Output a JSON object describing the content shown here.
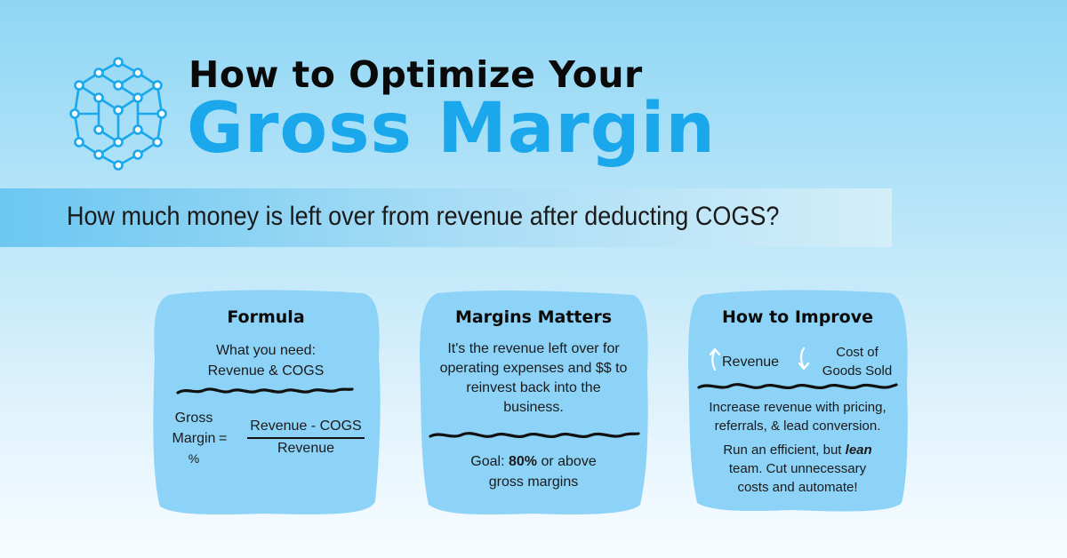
{
  "header": {
    "title_line1": "How to Optimize Your",
    "title_line2": "Gross Margin",
    "subtitle": "How much money is left over from revenue after deducting COGS?"
  },
  "logo": {
    "icon": "hexagon-network-logo",
    "color": "#1aa7ec"
  },
  "colors": {
    "accent": "#1aa7ec",
    "card": "#8dd3f7",
    "band": "#6cc7f1"
  },
  "cards": [
    {
      "title": "Formula",
      "need_line1": "What you need:",
      "need_line2": "Revenue & COGS",
      "lhs_line1": "Gross",
      "lhs_line2": "Margin",
      "lhs_line3": "%",
      "equals": "=",
      "numerator": "Revenue - COGS",
      "denominator": "Revenue"
    },
    {
      "title": "Margins Matters",
      "body_lines": [
        "It's the revenue left over for",
        "operating expenses and $$ to",
        "reinvest back into the",
        "business."
      ],
      "goal_prefix": "Goal: ",
      "goal_value": "80%",
      "goal_suffix": " or above",
      "goal_line2": "gross margins"
    },
    {
      "title": "How to Improve",
      "up_label": "Revenue",
      "down_label_line1": "Cost of",
      "down_label_line2": "Goods Sold",
      "tip1_line1": "Increase revenue with pricing,",
      "tip1_line2": "referrals, & lead conversion.",
      "tip2_prefix": "Run an efficient, but ",
      "tip2_emph": "lean",
      "tip2_line2": "team. Cut unnecessary",
      "tip2_line3": "costs and automate!"
    }
  ]
}
